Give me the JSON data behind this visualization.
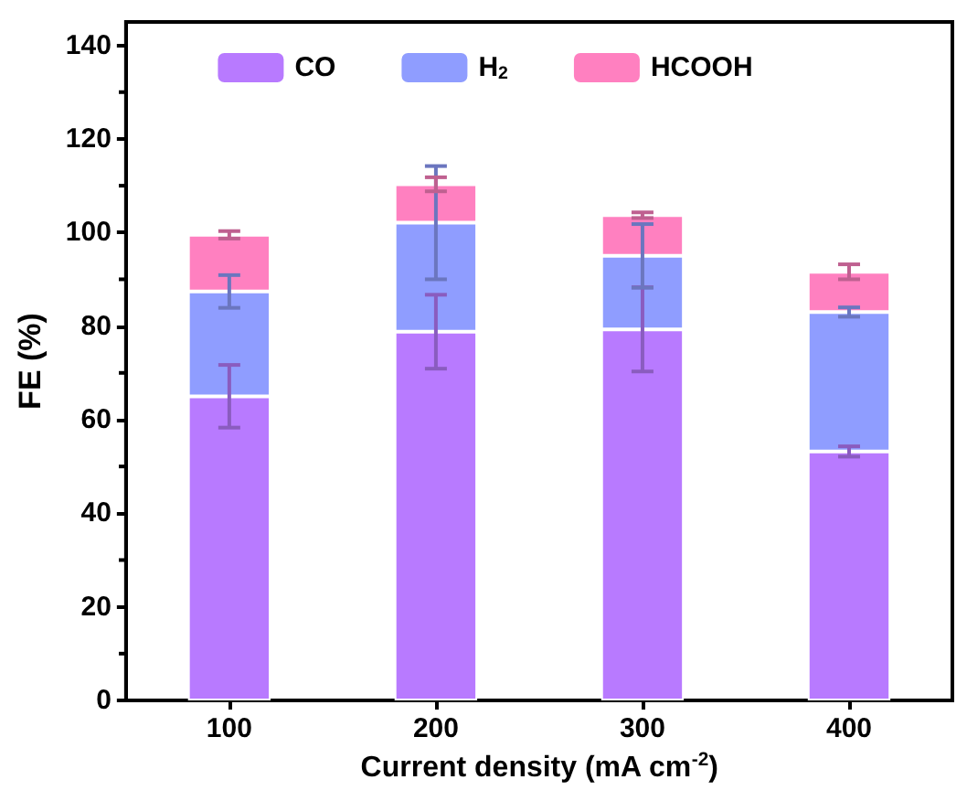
{
  "chart_data": {
    "type": "bar",
    "stacked": true,
    "xlabel": "Current density (mA cm$^{-2}$)",
    "ylabel": "FE (%)",
    "categories": [
      "100",
      "200",
      "300",
      "400"
    ],
    "series": [
      {
        "name": "CO",
        "color": "#b87aff",
        "values": [
          65.0,
          78.8,
          79.3,
          53.2
        ],
        "errors": [
          6.7,
          7.9,
          9.0,
          1.1
        ]
      },
      {
        "name": "H$_{2}$",
        "color": "#8f9dff",
        "values": [
          22.4,
          23.3,
          15.7,
          29.8
        ],
        "errors": [
          3.5,
          12.1,
          6.8,
          1.0
        ]
      },
      {
        "name": "HCOOH",
        "color": "#ff80c0",
        "values": [
          12.1,
          8.2,
          8.7,
          8.6
        ],
        "errors": [
          0.8,
          1.5,
          0.6,
          1.6
        ]
      }
    ],
    "ylim": [
      0,
      145
    ],
    "yticks": [
      0,
      20,
      40,
      60,
      80,
      100,
      120,
      140
    ],
    "grid": false,
    "legend": "top"
  }
}
